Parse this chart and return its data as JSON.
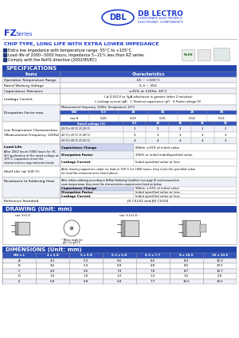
{
  "title_series_fz": "FZ",
  "title_series_rest": " Series",
  "chip_type_title": "CHIP TYPE, LONG LIFE WITH EXTRA LOWER IMPEDANCE",
  "features": [
    "Extra low impedance with temperature range -55°C to +105°C",
    "Load life of 2000~5000 hours, impedance 5~21% less than RZ series",
    "Comply with the RoHS directive (2002/95/EC)"
  ],
  "specs_title": "SPECIFICATIONS",
  "spec_rows": [
    [
      "Operation Temperature Range",
      "-55 ~ +105°C"
    ],
    [
      "Rated Working Voltage",
      "6.3 ~ 35V"
    ],
    [
      "Capacitance Tolerance",
      "±20% at 120Hz, 20°C"
    ]
  ],
  "leakage_label": "Leakage Current",
  "leakage_formula": "I ≤ 0.01CV or 3μA whichever is greater (after 2 minutes)",
  "leakage_sub": "I: Leakage current (μA)   C: Nominal capacitance (μF)   V: Rated voltage (V)",
  "dissipation_label": "Dissipation Factor max.",
  "dissipation_freq": "Measurement frequency: 120Hz, Temperature: 20°C",
  "dissipation_headers": [
    "WV",
    "6.3",
    "10",
    "16",
    "25",
    "35"
  ],
  "dissipation_values": [
    "tan δ",
    "0.26",
    "0.19",
    "0.16",
    "0.14",
    "0.12"
  ],
  "low_temp_label_1": "Low Temperature Characteristics",
  "low_temp_label_2": "(Measurement Frequency: 120Hz)",
  "low_temp_headers": [
    "Rated voltage (V)",
    "6.3",
    "10",
    "16",
    "25",
    "35"
  ],
  "low_temp_col0_labels": [
    "Impedance ratio",
    "at 120Hz max.",
    ""
  ],
  "low_temp_col1_labels": [
    "-25°C(+20°C) Z(-25°C)",
    "-40°C(+20°C) Z(-40°C)",
    "-55°C(+20°C) Z(-55°C)"
  ],
  "low_temp_values": [
    [
      "2",
      "2",
      "2",
      "2",
      "2"
    ],
    [
      "3",
      "3",
      "3",
      "3",
      "3"
    ],
    [
      "4",
      "4",
      "4",
      "4",
      "3"
    ]
  ],
  "load_life_label": "Load Life",
  "load_life_lines": [
    "After 2000 hours (5000 hours for 35,",
    "4V) application of the rated voltage at",
    "105°C, capacitors meet the",
    "characteristics requirements listed."
  ],
  "load_life_rows": [
    [
      "Capacitance Change",
      "Within ±20% of initial value"
    ],
    [
      "Dissipation Factor",
      "200% or initial initial/specified value"
    ],
    [
      "Leakage Current",
      "Initial specified value or less"
    ]
  ],
  "shelf_life_label": "Shelf Life (at 105°C)",
  "shelf_life_lines": [
    "After leaving capacitors under no load at 105°C for 1000 hours, they meet the specified value",
    "for load life characteristics listed above."
  ],
  "soldering_label": "Resistance to Soldering Heat",
  "soldering_lines": [
    "After reflow soldering according to Reflow Soldering Condition (see page 8) and measured at",
    "room temperature, they meet the characteristics requirements listed as below."
  ],
  "soldering_rows": [
    [
      "Capacitance Change",
      "Within ±10% of initial value"
    ],
    [
      "Dissipation Factor",
      "Initial specified value or less"
    ],
    [
      "Leakage Current",
      "Initial specified value or less"
    ]
  ],
  "reference_label": "Reference Standard",
  "reference_text": "JIS C5141 and JIS C5102",
  "drawing_title": "DRAWING (Unit: mm)",
  "dimensions_title": "DIMENSIONS (Unit: mm)",
  "dim_headers": [
    "ØD x L",
    "4 x 5.8",
    "5 x 5.8",
    "6.3 x 5.8",
    "6.3 x 7.7",
    "8 x 10.5",
    "10 x 10.5"
  ],
  "dim_rows": [
    [
      "A",
      "4.3",
      "5.3",
      "6.6",
      "6.6",
      "8.3",
      "10.3"
    ],
    [
      "B",
      "4.6",
      "5.4",
      "6.8",
      "6.8",
      "8.5",
      "10.5"
    ],
    [
      "C",
      "4.9",
      "5.6",
      "7.0",
      "7.0",
      "8.7",
      "10.7"
    ],
    [
      "D",
      "1.0",
      "1.0",
      "1.2",
      "1.2",
      "1.5",
      "2.0"
    ],
    [
      "E",
      "5.8",
      "5.8",
      "5.8",
      "7.7",
      "10.5",
      "10.5"
    ]
  ],
  "blue_dark": "#1e3a7a",
  "blue_mid": "#2244aa",
  "blue_header_bg": "#2244aa",
  "body_bg": "#ffffff",
  "border_color": "#999999",
  "fz_color": "#1e3acc",
  "chip_color": "#1e3acc",
  "logo_blue": "#1e3acc",
  "row_alt": "#eef0f8",
  "row_white": "#ffffff",
  "sub_header_bg": "#3355bb"
}
